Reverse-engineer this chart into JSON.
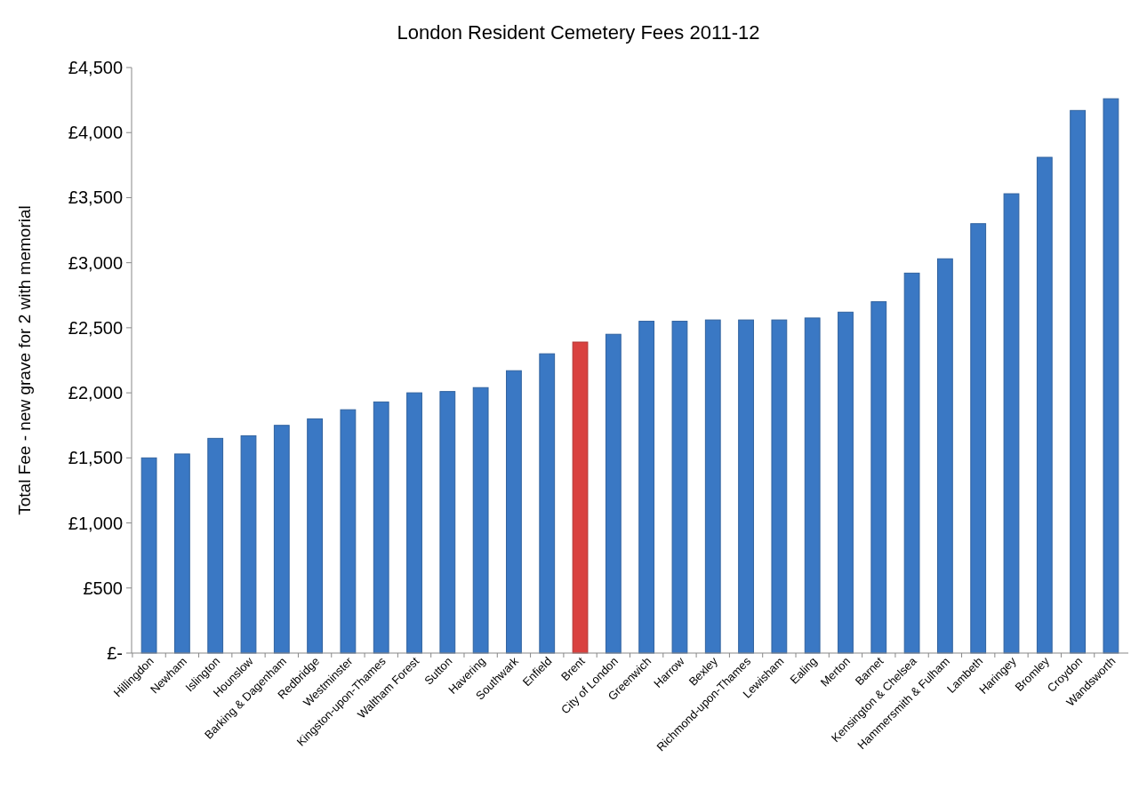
{
  "chart_data": {
    "type": "bar",
    "title": "London Resident Cemetery Fees 2011-12",
    "ylabel": "Total Fee - new grave for 2 with memorial",
    "categories": [
      "Hillingdon",
      "Newham",
      "Islington",
      "Hounslow",
      "Barking & Dagenham",
      "Redbridge",
      "Westminster",
      "Kingston-upon-Thames",
      "Waltham Forest",
      "Sutton",
      "Havering",
      "Southwark",
      "Enfield",
      "Brent",
      "City of London",
      "Greenwich",
      "Harrow",
      "Bexley",
      "Richmond-upon-Thames",
      "Lewisham",
      "Ealing",
      "Merton",
      "Barnet",
      "Kensington & Chelsea",
      "Hammersmith & Fulham",
      "Lambeth",
      "Haringey",
      "Bromley",
      "Croydon",
      "Wandsworth"
    ],
    "values": [
      1500,
      1530,
      1650,
      1670,
      1750,
      1800,
      1870,
      1930,
      2000,
      2010,
      2040,
      2170,
      2300,
      2390,
      2450,
      2550,
      2550,
      2560,
      2560,
      2560,
      2575,
      2620,
      2700,
      2920,
      3030,
      3300,
      3530,
      3810,
      4170,
      4260
    ],
    "colors": [
      "#3a78c4",
      "#3a78c4",
      "#3a78c4",
      "#3a78c4",
      "#3a78c4",
      "#3a78c4",
      "#3a78c4",
      "#3a78c4",
      "#3a78c4",
      "#3a78c4",
      "#3a78c4",
      "#3a78c4",
      "#3a78c4",
      "#d9413f",
      "#3a78c4",
      "#3a78c4",
      "#3a78c4",
      "#3a78c4",
      "#3a78c4",
      "#3a78c4",
      "#3a78c4",
      "#3a78c4",
      "#3a78c4",
      "#3a78c4",
      "#3a78c4",
      "#3a78c4",
      "#3a78c4",
      "#3a78c4",
      "#3a78c4",
      "#3a78c4"
    ],
    "ylim": [
      0,
      4500
    ],
    "yticks": [
      {
        "value": 0,
        "label": "£-"
      },
      {
        "value": 500,
        "label": "£500"
      },
      {
        "value": 1000,
        "label": "£1,000"
      },
      {
        "value": 1500,
        "label": "£1,500"
      },
      {
        "value": 2000,
        "label": "£2,000"
      },
      {
        "value": 2500,
        "label": "£2,500"
      },
      {
        "value": 3000,
        "label": "£3,000"
      },
      {
        "value": 3500,
        "label": "£3,500"
      },
      {
        "value": 4000,
        "label": "£4,000"
      },
      {
        "value": 4500,
        "label": "£4,500"
      }
    ],
    "grid": false
  }
}
